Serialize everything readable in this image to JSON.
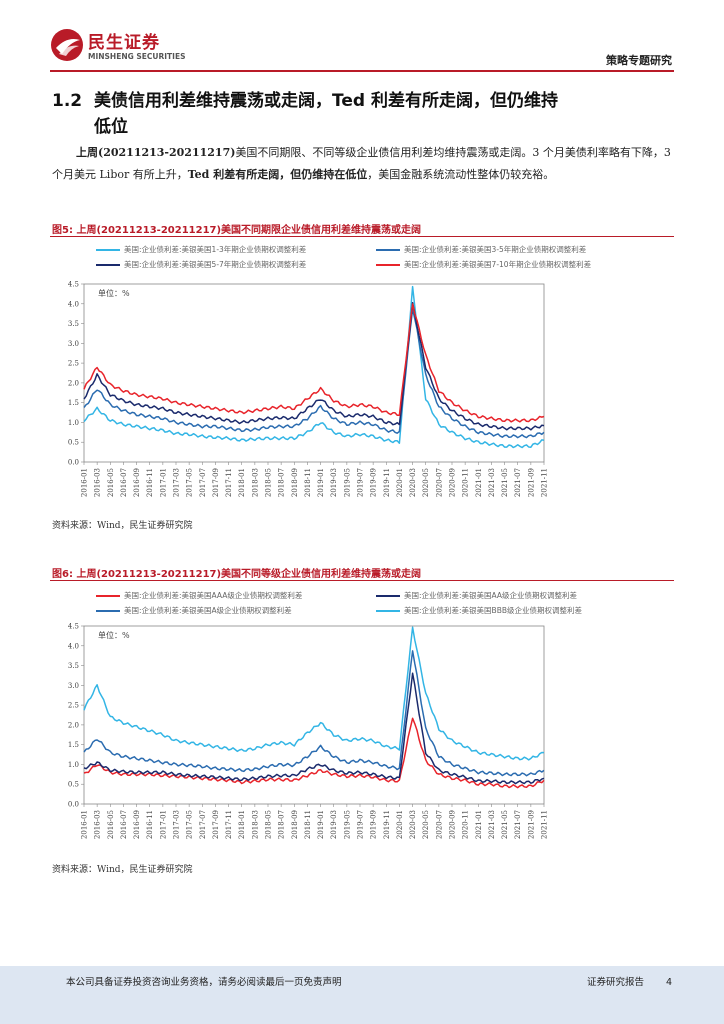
{
  "header": {
    "logo_cn": "民生证券",
    "logo_en": "MINSHENG SECURITIES",
    "report_type": "策略专题研究"
  },
  "section": {
    "number": "1.2",
    "title_line1": "美债信用利差维持震荡或走阔，Ted 利差有所走阔，但仍维持",
    "title_line2": "低位"
  },
  "paragraph": {
    "period": "上周(20211213-20211217)",
    "text1": "美国不同期限、不同等级企业债信用利差均维持震荡或走阔。3 个月美债利率略有下降，3 个月美元 Libor 有所上升，",
    "bold": "Ted 利差有所走阔，但仍维持在低位",
    "text2": "，美国金融系统流动性整体仍较充裕。"
  },
  "figures": [
    {
      "title": "图5: 上周(20211213-20211217)美国不同期限企业债信用利差维持震荡或走阔",
      "source": "资料来源：Wind，民生证券研究院",
      "legend": [
        {
          "label": "美国:企业债利差:美银美国1-3年期企业债期权调整利差",
          "color": "#33b5e5"
        },
        {
          "label": "美国:企业债利差:美银美国3-5年期企业债期权调整利差",
          "color": "#2b6cb0"
        },
        {
          "label": "美国:企业债利差:美银美国5-7年期企业债期权调整利差",
          "color": "#1a2a6c"
        },
        {
          "label": "美国:企业债利差:美银美国7-10年期企业债期权调整利差",
          "color": "#e8242b"
        }
      ]
    },
    {
      "title": "图6: 上周(20211213-20211217)美国不同等级企业债信用利差维持震荡或走阔",
      "source": "资料来源：Wind，民生证券研究院",
      "legend": [
        {
          "label": "美国:企业债利差:美银美国AAA级企业债期权调整利差",
          "color": "#e8242b"
        },
        {
          "label": "美国:企业债利差:美银美国AA级企业债期权调整利差",
          "color": "#1a2a6c"
        },
        {
          "label": "美国:企业债利差:美银美国A级企业债期权调整利差",
          "color": "#2b6cb0"
        },
        {
          "label": "美国:企业债利差:美银美国BBB级企业债期权调整利差",
          "color": "#33b5e5"
        }
      ]
    }
  ],
  "chart_data": [
    {
      "type": "line",
      "unit_label": "单位：%",
      "ylim": [
        0,
        4.5
      ],
      "yticks": [
        "0.0",
        "0.5",
        "1.0",
        "1.5",
        "2.0",
        "2.5",
        "3.0",
        "3.5",
        "4.0",
        "4.5"
      ],
      "categories": [
        "2016-01",
        "2016-03",
        "2016-05",
        "2016-07",
        "2016-09",
        "2016-11",
        "2017-01",
        "2017-03",
        "2017-05",
        "2017-07",
        "2017-09",
        "2017-11",
        "2018-01",
        "2018-03",
        "2018-05",
        "2018-07",
        "2018-09",
        "2018-11",
        "2019-01",
        "2019-03",
        "2019-05",
        "2019-07",
        "2019-09",
        "2019-11",
        "2020-01",
        "2020-03",
        "2020-05",
        "2020-07",
        "2020-09",
        "2020-11",
        "2021-01",
        "2021-03",
        "2021-05",
        "2021-07",
        "2021-09",
        "2021-11"
      ],
      "series": [
        {
          "name": "美国:企业债利差:美银美国1-3年期企业债期权调整利差",
          "color": "#33b5e5",
          "values": [
            1.05,
            1.35,
            1.05,
            0.95,
            0.9,
            0.85,
            0.8,
            0.72,
            0.7,
            0.65,
            0.62,
            0.6,
            0.55,
            0.58,
            0.6,
            0.6,
            0.6,
            0.75,
            1.0,
            0.75,
            0.65,
            0.7,
            0.65,
            0.55,
            0.5,
            4.4,
            1.6,
            0.95,
            0.75,
            0.6,
            0.5,
            0.45,
            0.4,
            0.4,
            0.4,
            0.55
          ]
        },
        {
          "name": "美国:企业债利差:美银美国3-5年期企业债期权调整利差",
          "color": "#2b6cb0",
          "values": [
            1.35,
            1.85,
            1.45,
            1.3,
            1.2,
            1.15,
            1.1,
            1.0,
            0.95,
            0.9,
            0.9,
            0.85,
            0.8,
            0.82,
            0.88,
            0.9,
            0.9,
            1.1,
            1.4,
            1.1,
            0.95,
            1.0,
            0.95,
            0.8,
            0.75,
            3.9,
            2.2,
            1.4,
            1.1,
            0.9,
            0.75,
            0.7,
            0.65,
            0.65,
            0.65,
            0.75
          ]
        },
        {
          "name": "美国:企业债利差:美银美国5-7年期企业债期权调整利差",
          "color": "#1a2a6c",
          "values": [
            1.6,
            2.2,
            1.7,
            1.55,
            1.45,
            1.4,
            1.35,
            1.25,
            1.2,
            1.15,
            1.1,
            1.05,
            1.0,
            1.05,
            1.1,
            1.12,
            1.1,
            1.35,
            1.6,
            1.3,
            1.15,
            1.2,
            1.15,
            1.0,
            0.95,
            4.0,
            2.4,
            1.6,
            1.3,
            1.1,
            0.95,
            0.9,
            0.85,
            0.85,
            0.85,
            0.92
          ]
        },
        {
          "name": "美国:企业债利差:美银美国7-10年期企业债期权调整利差",
          "color": "#e8242b",
          "values": [
            1.85,
            2.4,
            1.95,
            1.8,
            1.7,
            1.65,
            1.6,
            1.5,
            1.45,
            1.4,
            1.35,
            1.3,
            1.25,
            1.3,
            1.35,
            1.4,
            1.35,
            1.6,
            1.85,
            1.55,
            1.4,
            1.45,
            1.4,
            1.25,
            1.2,
            4.0,
            2.7,
            1.8,
            1.5,
            1.3,
            1.15,
            1.1,
            1.05,
            1.05,
            1.05,
            1.15
          ]
        }
      ]
    },
    {
      "type": "line",
      "unit_label": "单位：%",
      "ylim": [
        0,
        4.5
      ],
      "yticks": [
        "0.0",
        "0.5",
        "1.0",
        "1.5",
        "2.0",
        "2.5",
        "3.0",
        "3.5",
        "4.0",
        "4.5"
      ],
      "categories": [
        "2016-01",
        "2016-03",
        "2016-05",
        "2016-07",
        "2016-09",
        "2016-11",
        "2017-01",
        "2017-03",
        "2017-05",
        "2017-07",
        "2017-09",
        "2017-11",
        "2018-01",
        "2018-03",
        "2018-05",
        "2018-07",
        "2018-09",
        "2018-11",
        "2019-01",
        "2019-03",
        "2019-05",
        "2019-07",
        "2019-09",
        "2019-11",
        "2020-01",
        "2020-03",
        "2020-05",
        "2020-07",
        "2020-09",
        "2020-11",
        "2021-01",
        "2021-03",
        "2021-05",
        "2021-07",
        "2021-09",
        "2021-11"
      ],
      "series": [
        {
          "name": "美国:企业债利差:美银美国AAA级企业债期权调整利差",
          "color": "#e8242b",
          "values": [
            0.75,
            1.0,
            0.8,
            0.75,
            0.75,
            0.75,
            0.72,
            0.7,
            0.68,
            0.65,
            0.62,
            0.6,
            0.55,
            0.58,
            0.62,
            0.62,
            0.6,
            0.72,
            0.85,
            0.75,
            0.7,
            0.72,
            0.68,
            0.6,
            0.58,
            2.2,
            1.1,
            0.75,
            0.65,
            0.6,
            0.5,
            0.5,
            0.45,
            0.45,
            0.45,
            0.6
          ]
        },
        {
          "name": "美国:企业债利差:美银美国AA级企业债期权调整利差",
          "color": "#1a2a6c",
          "values": [
            0.9,
            1.05,
            0.85,
            0.82,
            0.8,
            0.8,
            0.8,
            0.75,
            0.72,
            0.7,
            0.68,
            0.65,
            0.62,
            0.65,
            0.7,
            0.72,
            0.72,
            0.88,
            1.0,
            0.85,
            0.78,
            0.8,
            0.75,
            0.68,
            0.65,
            3.3,
            1.3,
            0.85,
            0.75,
            0.68,
            0.58,
            0.58,
            0.55,
            0.55,
            0.55,
            0.65
          ]
        },
        {
          "name": "美国:企业债利差:美银美国A级企业债期权调整利差",
          "color": "#2b6cb0",
          "values": [
            1.3,
            1.65,
            1.3,
            1.2,
            1.15,
            1.1,
            1.05,
            1.0,
            0.98,
            0.95,
            0.9,
            0.88,
            0.85,
            0.88,
            0.95,
            1.0,
            0.98,
            1.2,
            1.45,
            1.2,
            1.05,
            1.1,
            1.05,
            0.95,
            0.9,
            3.9,
            1.9,
            1.2,
            1.0,
            0.9,
            0.8,
            0.78,
            0.75,
            0.75,
            0.75,
            0.85
          ]
        },
        {
          "name": "美国:企业债利差:美银美国BBB级企业债期权调整利差",
          "color": "#33b5e5",
          "values": [
            2.4,
            3.0,
            2.2,
            2.05,
            1.95,
            1.85,
            1.75,
            1.6,
            1.55,
            1.5,
            1.45,
            1.4,
            1.35,
            1.4,
            1.5,
            1.55,
            1.5,
            1.8,
            2.05,
            1.75,
            1.6,
            1.65,
            1.6,
            1.45,
            1.4,
            4.45,
            2.8,
            1.9,
            1.6,
            1.45,
            1.3,
            1.25,
            1.2,
            1.15,
            1.15,
            1.3
          ]
        }
      ]
    }
  ],
  "footer": {
    "disclaimer": "本公司具备证券投资咨询业务资格，请务必阅读最后一页免责声明",
    "report_label": "证券研究报告",
    "page_number": "4"
  }
}
